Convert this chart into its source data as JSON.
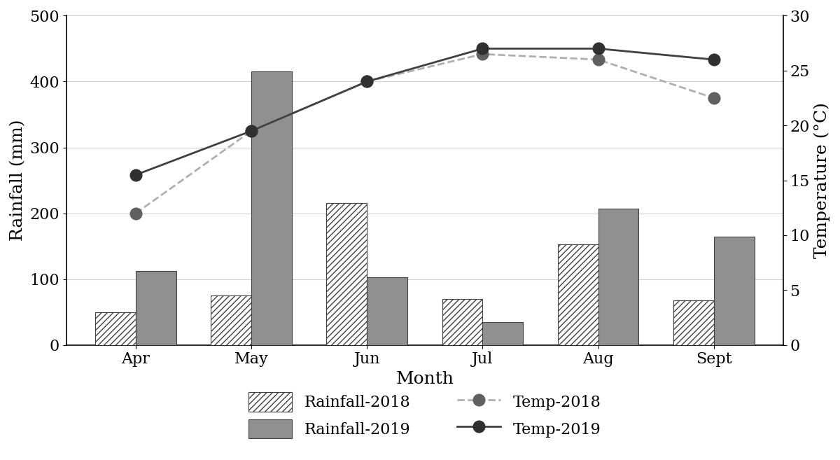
{
  "months": [
    "Apr",
    "May",
    "Jun",
    "Jul",
    "Aug",
    "Sept"
  ],
  "rainfall_2018": [
    50,
    75,
    215,
    70,
    153,
    68
  ],
  "rainfall_2019": [
    112,
    415,
    103,
    35,
    207,
    165
  ],
  "temp_2018": [
    12,
    19.5,
    24,
    26.5,
    26,
    22.5
  ],
  "temp_2019": [
    15.5,
    19.5,
    24,
    27,
    27,
    26
  ],
  "ylabel_left": "Rainfall (mm)",
  "ylabel_right": "Temperature (°C)",
  "xlabel": "Month",
  "ylim_left": [
    0,
    500
  ],
  "ylim_right": [
    0,
    30
  ],
  "yticks_left": [
    0,
    100,
    200,
    300,
    400,
    500
  ],
  "yticks_right": [
    0,
    5,
    10,
    15,
    20,
    25,
    30
  ],
  "bar_color_2018": "#ffffff",
  "bar_color_2019": "#909090",
  "bar_edgecolor": "#404040",
  "hatch_2018": "////",
  "line_color_2018": "#b0b0b0",
  "line_color_2019": "#404040",
  "marker_color_2018": "#606060",
  "marker_color_2019": "#303030",
  "bar_width": 0.35,
  "background_color": "#ffffff",
  "grid_color": "#d0d0d0",
  "font_family": "serif",
  "tick_fontsize": 16,
  "label_fontsize": 18,
  "legend_fontsize": 16
}
